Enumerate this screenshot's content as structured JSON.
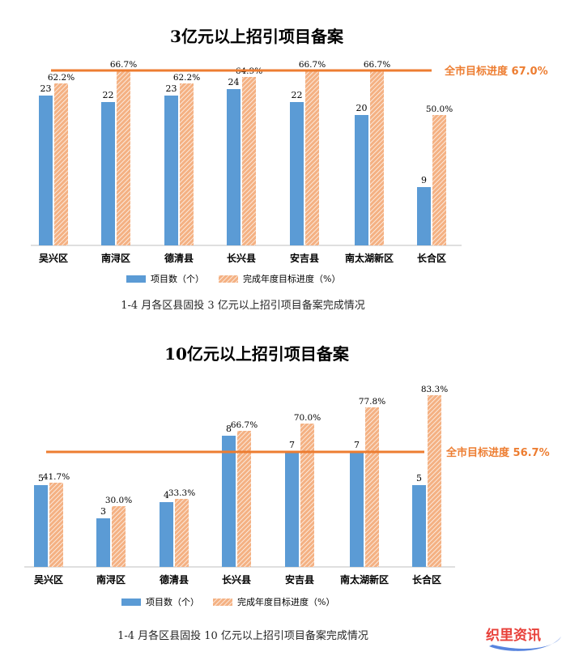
{
  "chart_data": [
    {
      "type": "bar",
      "title": "3亿元以上招引项目备案",
      "categories": [
        "吴兴区",
        "南浔区",
        "德清县",
        "长兴县",
        "安吉县",
        "南太湖新区",
        "长合区"
      ],
      "series": [
        {
          "name": "项目数（个）",
          "values": [
            23,
            22,
            23,
            24,
            22,
            20,
            9
          ],
          "labels": [
            "23",
            "22",
            "23",
            "24",
            "22",
            "20",
            "9"
          ]
        },
        {
          "name": "完成年度目标进度（%）",
          "values": [
            62.2,
            66.7,
            62.2,
            64.9,
            66.7,
            66.7,
            50.0
          ],
          "labels": [
            "62.2%",
            "66.7%",
            "62.2%",
            "64.9%",
            "66.7%",
            "66.7%",
            "50.0%"
          ]
        }
      ],
      "target": {
        "value": 67.0,
        "label": "全市目标进度 67.0%"
      },
      "legend_position": "bottom",
      "caption": "1-4 月各区县固投 3 亿元以上招引项目备案完成情况"
    },
    {
      "type": "bar",
      "title": "10亿元以上招引项目备案",
      "categories": [
        "吴兴区",
        "南浔区",
        "德清县",
        "长兴县",
        "安吉县",
        "南太湖新区",
        "长合区"
      ],
      "series": [
        {
          "name": "项目数（个）",
          "values": [
            5,
            3,
            4,
            8,
            7,
            7,
            5
          ],
          "labels": [
            "5",
            "3",
            "4",
            "8",
            "7",
            "7",
            "5"
          ]
        },
        {
          "name": "完成年度目标进度（%）",
          "values": [
            41.7,
            30.0,
            33.3,
            66.7,
            70.0,
            77.8,
            83.3
          ],
          "labels": [
            "41.7%",
            "30.0%",
            "33.3%",
            "66.7%",
            "70.0%",
            "77.8%",
            "83.3%"
          ]
        }
      ],
      "target": {
        "value": 56.7,
        "label": "全市目标进度 56.7%"
      },
      "legend_position": "bottom",
      "caption": "1-4 月各区县固投 10 亿元以上招引项目备案完成情况"
    }
  ],
  "colors": {
    "count_bar": "#5b9bd5",
    "progress_bar": "#f4b183",
    "hatch": "#ffffff",
    "target_line": "#ed7d31",
    "axis": "#bfbfbf",
    "text": "#000000"
  },
  "watermark": {
    "text": "织里资讯",
    "color": "#e8403a"
  }
}
